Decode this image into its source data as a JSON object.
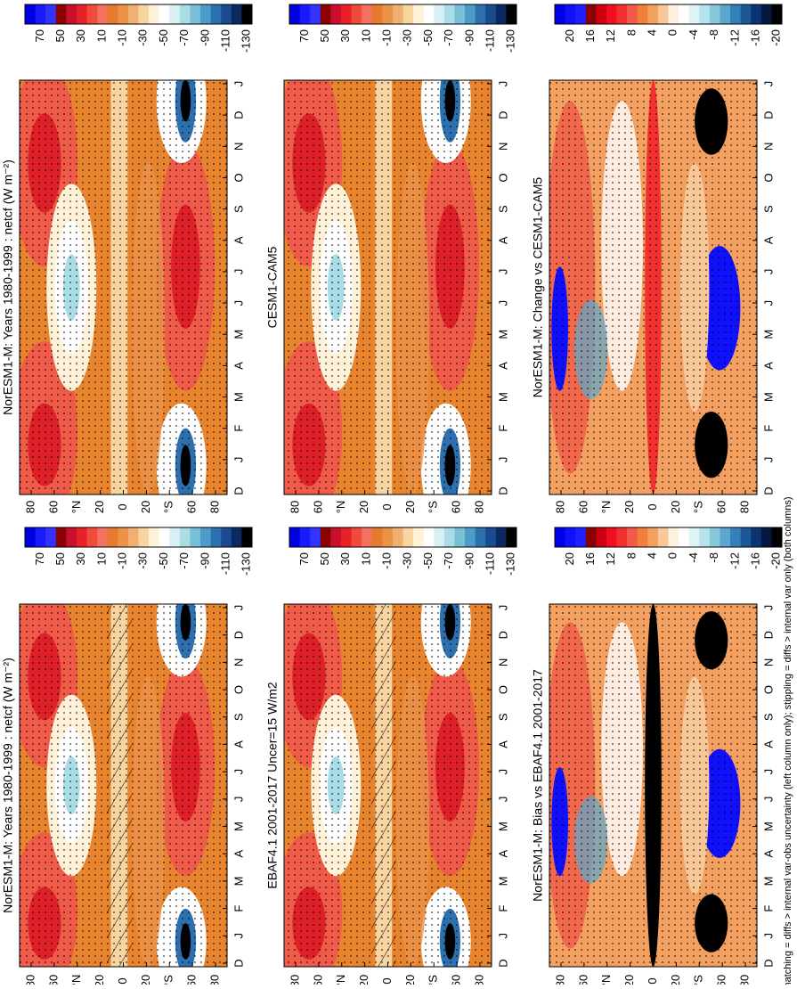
{
  "figure": {
    "panels": [
      {
        "title": "NorESM1-M: Years 1980-1999 : netcf (W m⁻²)",
        "kind": "mean",
        "hatch": false
      },
      {
        "title": "NorESM1-M: Years 1980-1999 : netcf (W m⁻²)",
        "kind": "mean",
        "hatch": true
      },
      {
        "title": "CESM1-CAM5",
        "kind": "mean",
        "hatch": false
      },
      {
        "title": "EBAF4.1 2001-2017 Uncer=15 W/m2",
        "kind": "mean",
        "hatch": true
      },
      {
        "title": "NorESM1-M: Change vs CESM1-CAM5",
        "kind": "diff",
        "hatch": false
      },
      {
        "title": "NorESM1-M: Bias vs EBAF4.1 2001-2017",
        "kind": "diff",
        "hatch": false
      }
    ],
    "lat_labels": [
      "80",
      "60",
      "°N",
      "20",
      "0",
      "20",
      "°S",
      "60",
      "80"
    ],
    "month_labels": [
      "D",
      "J",
      "F",
      "M",
      "A",
      "M",
      "J",
      "J",
      "A",
      "S",
      "O",
      "N",
      "D",
      "J"
    ],
    "mean_colorbar_labels": [
      "70",
      "50",
      "30",
      "10",
      "-10",
      "-30",
      "-50",
      "-70",
      "-90",
      "-110",
      "-130"
    ],
    "diff_colorbar_labels": [
      "20",
      "16",
      "12",
      "8",
      "4",
      "0",
      "-4",
      "-8",
      "-12",
      "-16",
      "-20"
    ],
    "footnote": "hatching = diffs > internal var-obs uncertainty (left column only); stippling = diffs > internal var only (both columns)"
  }
}
